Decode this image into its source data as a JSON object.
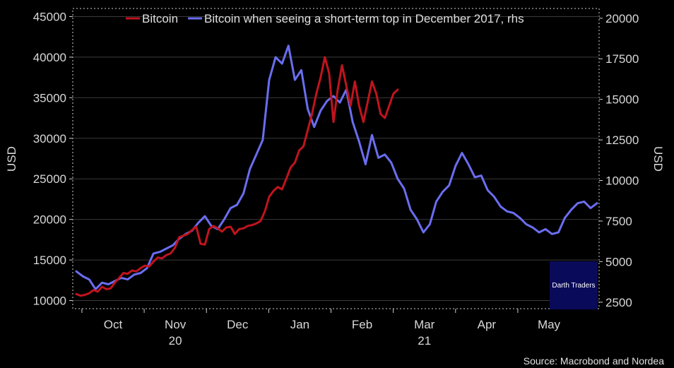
{
  "chart_data": {
    "type": "line",
    "source": "Source: Macrobond and Nordea",
    "watermark": "Darth Traders",
    "legend": {
      "placement": "top-center",
      "items": [
        "Bitcoin",
        "Bitcoin when seeing a short-term top in December 2017, rhs"
      ]
    },
    "colors": {
      "bitcoin": "#c0141e",
      "bitcoin_2017": "#6a6ef0",
      "background": "#000000"
    },
    "grid": true,
    "left_axis": {
      "label": "USD",
      "range": [
        9000,
        46000
      ],
      "ticks": [
        10000,
        15000,
        20000,
        25000,
        30000,
        35000,
        40000,
        45000
      ]
    },
    "right_axis": {
      "label": "USD",
      "range": [
        2100,
        20600
      ],
      "ticks": [
        2500,
        5000,
        7500,
        10000,
        12500,
        15000,
        17500,
        20000
      ]
    },
    "x_axis": {
      "months": [
        "Oct",
        "Nov",
        "Dec",
        "Jan",
        "Feb",
        "Mar",
        "Apr",
        "May"
      ],
      "years": [
        {
          "label": "20",
          "under": "Nov"
        },
        {
          "label": "21",
          "under": "Mar"
        }
      ]
    },
    "series": [
      {
        "name": "Bitcoin",
        "axis": "left",
        "x_day_offset": [
          0,
          2,
          4,
          6,
          8,
          10,
          12,
          14,
          16,
          18,
          20,
          22,
          24,
          26,
          28,
          30,
          32,
          34,
          36,
          38,
          40,
          42,
          44,
          46,
          48,
          50,
          52,
          54,
          56,
          58,
          60,
          62,
          64,
          66,
          68,
          70,
          72,
          74,
          76,
          78,
          80,
          82,
          84,
          86,
          88,
          90,
          92,
          94,
          96,
          98,
          100,
          102,
          104,
          106,
          108,
          110,
          112,
          114,
          116,
          118,
          120,
          122,
          124,
          126,
          128,
          130,
          132,
          134,
          136,
          138,
          140,
          142,
          144,
          146,
          148,
          150
        ],
        "values": [
          10800,
          10600,
          10700,
          10900,
          11300,
          11100,
          11700,
          11400,
          11500,
          12200,
          12800,
          13400,
          13300,
          13700,
          13600,
          14000,
          14300,
          14200,
          14800,
          15300,
          15200,
          15600,
          15800,
          16500,
          17800,
          18000,
          18200,
          18700,
          19100,
          17000,
          16900,
          18800,
          19200,
          18900,
          18500,
          19000,
          19100,
          18200,
          18800,
          18900,
          19200,
          19300,
          19500,
          19800,
          21000,
          22800,
          23500,
          24000,
          23700,
          25000,
          26400,
          27000,
          28500,
          29000,
          31000,
          33000,
          35500,
          37500,
          40000,
          38000,
          32000,
          36000,
          39000,
          36500,
          34000,
          37000,
          34000,
          32000,
          34500,
          37000,
          35500,
          33000,
          32500,
          34000,
          35500,
          36000
        ]
      },
      {
        "name": "Bitcoin when seeing a short-term top in December 2017, rhs",
        "axis": "right",
        "x_day_offset": [
          0,
          3,
          6,
          9,
          12,
          15,
          18,
          21,
          24,
          27,
          30,
          33,
          36,
          39,
          42,
          45,
          48,
          51,
          54,
          57,
          60,
          63,
          66,
          69,
          72,
          75,
          78,
          81,
          84,
          87,
          90,
          93,
          96,
          99,
          102,
          105,
          108,
          111,
          114,
          117,
          120,
          123,
          126,
          129,
          132,
          135,
          138,
          141,
          144,
          147,
          150,
          153,
          156,
          159,
          162,
          165,
          168,
          171,
          174,
          177,
          180,
          183,
          186,
          189,
          192,
          195,
          198,
          201,
          204,
          207,
          210,
          213,
          216,
          219,
          222,
          225,
          228,
          231,
          234,
          237,
          240,
          243
        ],
        "values": [
          4400,
          4100,
          3900,
          3300,
          3700,
          3600,
          3800,
          4000,
          3900,
          4200,
          4300,
          4600,
          5500,
          5600,
          5800,
          6000,
          6400,
          6700,
          6900,
          7400,
          7800,
          7200,
          7000,
          7600,
          8300,
          8500,
          9200,
          10700,
          11600,
          12500,
          16200,
          17600,
          17200,
          18300,
          16200,
          16800,
          14400,
          13300,
          14300,
          14900,
          15200,
          14800,
          15600,
          13600,
          12400,
          11000,
          12800,
          11400,
          11600,
          11100,
          10100,
          9500,
          8200,
          7600,
          6800,
          7300,
          8700,
          9300,
          9700,
          10900,
          11700,
          11000,
          10200,
          10300,
          9400,
          9000,
          8400,
          8100,
          8000,
          7700,
          7300,
          7100,
          6800,
          7000,
          6700,
          6800,
          7700,
          8200,
          8600,
          8700,
          8300,
          8600
        ]
      }
    ]
  }
}
